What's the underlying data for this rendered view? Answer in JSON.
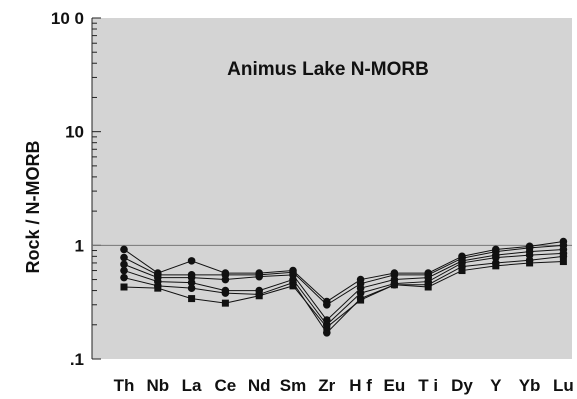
{
  "chart_data": {
    "type": "line",
    "title": "Animus Lake N-MORB",
    "xlabel": "",
    "ylabel": "Rock / N-MORB",
    "yscale": "log",
    "ylim": [
      0.1,
      100
    ],
    "yticks": [
      {
        "value": 0.1,
        "label": ".1"
      },
      {
        "value": 1,
        "label": "1"
      },
      {
        "value": 10,
        "label": "10"
      },
      {
        "value": 100,
        "label": "10 0"
      }
    ],
    "reference_line": 1,
    "grid": false,
    "legend": "none",
    "colors": {
      "plot_bg": "#d4d4d4",
      "line": "#111111",
      "reference": "#777777"
    },
    "categories": [
      "Th",
      "Nb",
      "La",
      "Ce",
      "Nd",
      "Sm",
      "Zr",
      "Hf",
      "Eu",
      "Ti",
      "Dy",
      "Y",
      "Yb",
      "Lu"
    ],
    "category_labels": [
      "Th",
      "Nb",
      "La",
      "Ce",
      "Nd",
      "Sm",
      "Zr",
      "H f",
      "Eu",
      "T i",
      "Dy",
      "Y",
      "Yb",
      "Lu"
    ],
    "series": [
      {
        "marker": "circle",
        "values": [
          0.92,
          0.57,
          0.73,
          0.57,
          0.57,
          0.6,
          0.32,
          0.5,
          0.57,
          0.57,
          0.8,
          0.92,
          0.98,
          1.08
        ]
      },
      {
        "marker": "circle",
        "values": [
          0.78,
          0.55,
          0.55,
          0.55,
          0.55,
          0.58,
          0.3,
          0.46,
          0.55,
          0.55,
          0.77,
          0.88,
          0.95,
          1.0
        ]
      },
      {
        "marker": "circle",
        "values": [
          0.68,
          0.52,
          0.52,
          0.5,
          0.53,
          0.55,
          0.22,
          0.42,
          0.5,
          0.52,
          0.73,
          0.82,
          0.88,
          0.92
        ]
      },
      {
        "marker": "circle",
        "values": [
          0.6,
          0.48,
          0.47,
          0.4,
          0.4,
          0.5,
          0.2,
          0.38,
          0.46,
          0.48,
          0.7,
          0.78,
          0.82,
          0.85
        ]
      },
      {
        "marker": "circle",
        "values": [
          0.52,
          0.44,
          0.42,
          0.38,
          0.37,
          0.47,
          0.17,
          0.34,
          0.45,
          0.45,
          0.65,
          0.7,
          0.74,
          0.8
        ]
      },
      {
        "marker": "square",
        "values": [
          0.43,
          0.42,
          0.34,
          0.31,
          0.36,
          0.44,
          0.19,
          0.33,
          0.45,
          0.43,
          0.6,
          0.66,
          0.7,
          0.72
        ]
      }
    ]
  }
}
